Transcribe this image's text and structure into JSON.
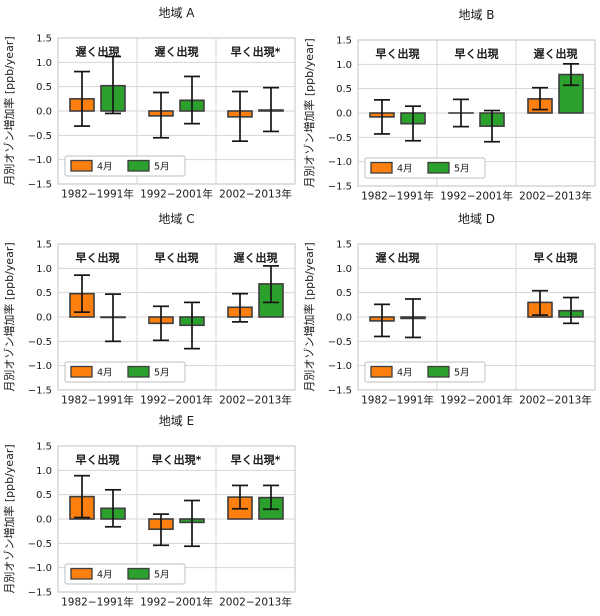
{
  "figure": {
    "ylabel": "月別オゾン増加率 [ppb/year]",
    "legend": {
      "entries": [
        {
          "label": "4月",
          "color": "#ff7f0e"
        },
        {
          "label": "5月",
          "color": "#2ca02c"
        }
      ],
      "position": "lower left"
    },
    "colors": {
      "april": "#ff7f0e",
      "may": "#2ca02c",
      "bar_edge": "#3d3d3d",
      "errorbar": "#151515",
      "grid": "#d6d6d6",
      "axis_border": "#cccccc",
      "text": "#1a1a1a"
    }
  },
  "chart_data": [
    {
      "type": "bar",
      "title": "地域 A",
      "categories": [
        "1982−1991年",
        "1992−2001年",
        "2002−2013年"
      ],
      "annotations": [
        "遅く出現",
        "遅く出現",
        "早く出現*"
      ],
      "ylabel": "月別オゾン増加率 [ppb/year]",
      "ylim": [
        -1.5,
        1.5
      ],
      "ytick_labels": [
        "1.5",
        "1.0",
        "0.5",
        "0.0",
        "−0.5",
        "−1.0",
        "−1.5"
      ],
      "ytick_values": [
        1.5,
        1.0,
        0.5,
        0.0,
        -0.5,
        -1.0,
        -1.5
      ],
      "grid": true,
      "legend_position": "lower left",
      "series": [
        {
          "name": "4月",
          "color": "#ff7f0e",
          "values": [
            0.25,
            -0.1,
            -0.12
          ],
          "err_lo": [
            -0.31,
            -0.55,
            -0.62
          ],
          "err_hi": [
            0.81,
            0.38,
            0.4
          ]
        },
        {
          "name": "5月",
          "color": "#2ca02c",
          "values": [
            0.52,
            0.22,
            0.02
          ],
          "err_lo": [
            -0.05,
            -0.26,
            -0.42
          ],
          "err_hi": [
            1.12,
            0.71,
            0.48
          ]
        }
      ]
    },
    {
      "type": "bar",
      "title": "地域 B",
      "categories": [
        "1982−1991年",
        "1992−2001年",
        "2002−2013年"
      ],
      "annotations": [
        "早く出現",
        "早く出現",
        "遅く出現"
      ],
      "ylabel": "月別オゾン増加率 [ppb/year]",
      "ylim": [
        -1.5,
        1.5
      ],
      "ytick_labels": [
        "1.5",
        "1.0",
        "0.5",
        "0.0",
        "−0.5",
        "−1.0",
        "−1.5"
      ],
      "ytick_values": [
        1.5,
        1.0,
        0.5,
        0.0,
        -0.5,
        -1.0,
        -1.5
      ],
      "grid": true,
      "legend_position": "lower left",
      "series": [
        {
          "name": "4月",
          "color": "#ff7f0e",
          "values": [
            -0.08,
            0.0,
            0.29
          ],
          "err_lo": [
            -0.43,
            -0.28,
            0.07
          ],
          "err_hi": [
            0.27,
            0.28,
            0.52
          ]
        },
        {
          "name": "5月",
          "color": "#2ca02c",
          "values": [
            -0.22,
            -0.27,
            0.79
          ],
          "err_lo": [
            -0.57,
            -0.59,
            0.57
          ],
          "err_hi": [
            0.14,
            0.05,
            1.01
          ]
        }
      ]
    },
    {
      "type": "bar",
      "title": "地域 C",
      "categories": [
        "1982−1991年",
        "1992−2001年",
        "2002−2013年"
      ],
      "annotations": [
        "早く出現",
        "早く出現",
        "遅く出現"
      ],
      "ylabel": "月別オゾン増加率 [ppb/year]",
      "ylim": [
        -1.5,
        1.5
      ],
      "ytick_labels": [
        "1.5",
        "1.0",
        "0.5",
        "0.0",
        "−0.5",
        "−1.0",
        "−1.5"
      ],
      "ytick_values": [
        1.5,
        1.0,
        0.5,
        0.0,
        -0.5,
        -1.0,
        -1.5
      ],
      "grid": true,
      "legend_position": "lower left",
      "series": [
        {
          "name": "4月",
          "color": "#ff7f0e",
          "values": [
            0.48,
            -0.13,
            0.2
          ],
          "err_lo": [
            0.1,
            -0.48,
            -0.1
          ],
          "err_hi": [
            0.86,
            0.22,
            0.48
          ]
        },
        {
          "name": "5月",
          "color": "#2ca02c",
          "values": [
            -0.01,
            -0.17,
            0.68
          ],
          "err_lo": [
            -0.5,
            -0.65,
            0.3
          ],
          "err_hi": [
            0.47,
            0.3,
            1.05
          ]
        }
      ]
    },
    {
      "type": "bar",
      "title": "地域 D",
      "categories": [
        "1982−1991年",
        "1992−2001年",
        "2002−2013年"
      ],
      "annotations": [
        "遅く出現",
        "",
        "早く出現"
      ],
      "ylabel": "月別オゾン増加率 [ppb/year]",
      "ylim": [
        -1.5,
        1.5
      ],
      "ytick_labels": [
        "1.5",
        "1.0",
        "0.5",
        "0.0",
        "−0.5",
        "−1.0",
        "−1.5"
      ],
      "ytick_values": [
        1.5,
        1.0,
        0.5,
        0.0,
        -0.5,
        -1.0,
        -1.5
      ],
      "grid": true,
      "legend_position": "lower left",
      "series": [
        {
          "name": "4月",
          "color": "#ff7f0e",
          "values": [
            -0.08,
            null,
            0.3
          ],
          "err_lo": [
            -0.4,
            null,
            0.04
          ],
          "err_hi": [
            0.26,
            null,
            0.54
          ]
        },
        {
          "name": "5月",
          "color": "#2ca02c",
          "values": [
            -0.03,
            null,
            0.13
          ],
          "err_lo": [
            -0.42,
            null,
            -0.13
          ],
          "err_hi": [
            0.37,
            null,
            0.4
          ]
        }
      ]
    },
    {
      "type": "bar",
      "title": "地域 E",
      "categories": [
        "1982−1991年",
        "1992−2001年",
        "2002−2013年"
      ],
      "annotations": [
        "早く出現",
        "早く出現*",
        "早く出現*"
      ],
      "ylabel": "月別オゾン増加率 [ppb/year]",
      "ylim": [
        -1.5,
        1.5
      ],
      "ytick_labels": [
        "1.5",
        "1.0",
        "0.5",
        "0.0",
        "−0.5",
        "−1.0",
        "−1.5"
      ],
      "ytick_values": [
        1.5,
        1.0,
        0.5,
        0.0,
        -0.5,
        -1.0,
        -1.5
      ],
      "grid": true,
      "legend_position": "lower left",
      "series": [
        {
          "name": "4月",
          "color": "#ff7f0e",
          "values": [
            0.46,
            -0.21,
            0.45
          ],
          "err_lo": [
            0.03,
            -0.54,
            0.21
          ],
          "err_hi": [
            0.89,
            0.1,
            0.69
          ]
        },
        {
          "name": "5月",
          "color": "#2ca02c",
          "values": [
            0.22,
            -0.07,
            0.44
          ],
          "err_lo": [
            -0.16,
            -0.56,
            0.2
          ],
          "err_hi": [
            0.6,
            0.38,
            0.69
          ]
        }
      ]
    }
  ]
}
